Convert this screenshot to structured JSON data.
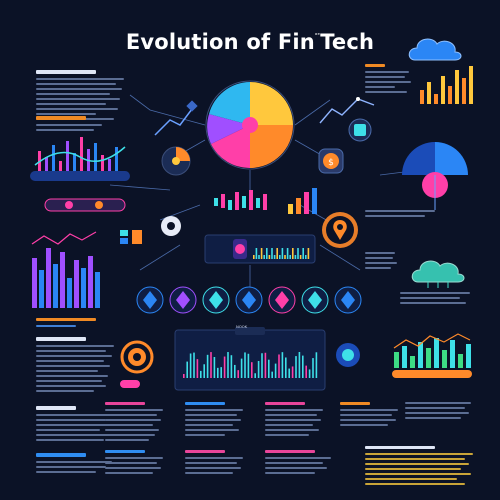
{
  "header": {
    "title": "Evolution of Fin",
    "title_sup": "ᵃᵉ",
    "title_tail": "Tech"
  },
  "center_panel": {
    "label": "ᴺᴼᴼᴷ"
  },
  "palette": {
    "bg": "#0b1226",
    "pink": "#ff3fa8",
    "blue": "#2b86f5",
    "orange": "#ff8a2a",
    "yellow": "#ffc83d",
    "cyan": "#3ee0e8",
    "green": "#3ddc84",
    "purple": "#a04fff"
  },
  "icons": [
    "pie-chart-icon",
    "cloud-icon",
    "bar-chart-icon",
    "gear-icon",
    "shield-icon",
    "location-pin-icon",
    "coin-icon",
    "crystal-icon",
    "globe-icon",
    "gauge-icon"
  ]
}
